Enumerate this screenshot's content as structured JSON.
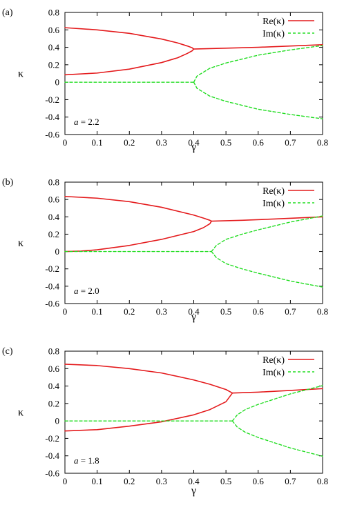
{
  "chart_data": [
    {
      "type": "line",
      "panel_label": "(a)",
      "xlabel": "γ",
      "ylabel": "κ",
      "xlim": [
        0,
        0.8
      ],
      "ylim": [
        -0.6,
        0.8
      ],
      "x_ticks": [
        "0",
        "0.1",
        "0.2",
        "0.3",
        "0.4",
        "0.5",
        "0.6",
        "0.7",
        "0.8"
      ],
      "y_ticks": [
        "-0.6",
        "-0.4",
        "-0.2",
        "0",
        "0.2",
        "0.4",
        "0.6",
        "0.8"
      ],
      "annotation": {
        "variable": "a",
        "equals": " = 2.2"
      },
      "legend_position": "top-right",
      "series": [
        {
          "name": "Re(κ)",
          "color": "#e41a1c",
          "style": "solid",
          "segments": [
            [
              [
                0,
                0.625
              ],
              [
                0.1,
                0.6
              ],
              [
                0.2,
                0.56
              ],
              [
                0.3,
                0.495
              ],
              [
                0.35,
                0.45
              ],
              [
                0.38,
                0.415
              ],
              [
                0.395,
                0.395
              ],
              [
                0.4,
                0.38
              ]
            ],
            [
              [
                0,
                0.085
              ],
              [
                0.1,
                0.105
              ],
              [
                0.2,
                0.15
              ],
              [
                0.3,
                0.225
              ],
              [
                0.35,
                0.28
              ],
              [
                0.38,
                0.33
              ],
              [
                0.395,
                0.36
              ],
              [
                0.4,
                0.38
              ]
            ],
            [
              [
                0.4,
                0.38
              ],
              [
                0.5,
                0.39
              ],
              [
                0.6,
                0.4
              ],
              [
                0.7,
                0.415
              ],
              [
                0.8,
                0.43
              ]
            ]
          ]
        },
        {
          "name": "Im(κ)",
          "color": "#22dd22",
          "style": "dashed",
          "segments": [
            [
              [
                0,
                0
              ],
              [
                0.4,
                0
              ]
            ],
            [
              [
                0.4,
                0
              ],
              [
                0.41,
                0.07
              ],
              [
                0.45,
                0.16
              ],
              [
                0.5,
                0.22
              ],
              [
                0.6,
                0.31
              ],
              [
                0.7,
                0.37
              ],
              [
                0.8,
                0.42
              ]
            ],
            [
              [
                0.4,
                0
              ],
              [
                0.41,
                -0.07
              ],
              [
                0.45,
                -0.16
              ],
              [
                0.5,
                -0.22
              ],
              [
                0.6,
                -0.31
              ],
              [
                0.7,
                -0.37
              ],
              [
                0.8,
                -0.42
              ]
            ]
          ]
        }
      ]
    },
    {
      "type": "line",
      "panel_label": "(b)",
      "xlabel": "γ",
      "ylabel": "κ",
      "xlim": [
        0,
        0.8
      ],
      "ylim": [
        -0.6,
        0.8
      ],
      "x_ticks": [
        "0",
        "0.1",
        "0.2",
        "0.3",
        "0.4",
        "0.5",
        "0.6",
        "0.7",
        "0.8"
      ],
      "y_ticks": [
        "-0.6",
        "-0.4",
        "-0.2",
        "0",
        "0.2",
        "0.4",
        "0.6",
        "0.8"
      ],
      "annotation": {
        "variable": "a",
        "equals": " = 2.0"
      },
      "legend_position": "top-right",
      "series": [
        {
          "name": "Re(κ)",
          "color": "#e41a1c",
          "style": "solid",
          "segments": [
            [
              [
                0,
                0.635
              ],
              [
                0.1,
                0.615
              ],
              [
                0.2,
                0.575
              ],
              [
                0.3,
                0.51
              ],
              [
                0.4,
                0.42
              ],
              [
                0.43,
                0.385
              ],
              [
                0.45,
                0.36
              ],
              [
                0.455,
                0.35
              ]
            ],
            [
              [
                0,
                0
              ],
              [
                0.05,
                0.005
              ],
              [
                0.1,
                0.02
              ],
              [
                0.2,
                0.07
              ],
              [
                0.3,
                0.14
              ],
              [
                0.4,
                0.23
              ],
              [
                0.43,
                0.275
              ],
              [
                0.45,
                0.32
              ],
              [
                0.455,
                0.35
              ]
            ],
            [
              [
                0.455,
                0.35
              ],
              [
                0.55,
                0.36
              ],
              [
                0.65,
                0.375
              ],
              [
                0.8,
                0.4
              ]
            ]
          ]
        },
        {
          "name": "Im(κ)",
          "color": "#22dd22",
          "style": "dashed",
          "segments": [
            [
              [
                0,
                0
              ],
              [
                0.455,
                0
              ]
            ],
            [
              [
                0.455,
                0
              ],
              [
                0.47,
                0.07
              ],
              [
                0.5,
                0.14
              ],
              [
                0.55,
                0.2
              ],
              [
                0.6,
                0.25
              ],
              [
                0.7,
                0.34
              ],
              [
                0.8,
                0.41
              ]
            ],
            [
              [
                0.455,
                0
              ],
              [
                0.47,
                -0.07
              ],
              [
                0.5,
                -0.14
              ],
              [
                0.55,
                -0.2
              ],
              [
                0.6,
                -0.25
              ],
              [
                0.7,
                -0.34
              ],
              [
                0.8,
                -0.41
              ]
            ]
          ]
        }
      ]
    },
    {
      "type": "line",
      "panel_label": "(c)",
      "xlabel": "γ",
      "ylabel": "κ",
      "xlim": [
        0,
        0.8
      ],
      "ylim": [
        -0.6,
        0.8
      ],
      "x_ticks": [
        "0",
        "0.1",
        "0.2",
        "0.3",
        "0.4",
        "0.5",
        "0.6",
        "0.7",
        "0.8"
      ],
      "y_ticks": [
        "-0.6",
        "-0.4",
        "-0.2",
        "0",
        "0.2",
        "0.4",
        "0.6",
        "0.8"
      ],
      "annotation": {
        "variable": "a",
        "equals": " = 1.8"
      },
      "legend_position": "top-right",
      "series": [
        {
          "name": "Re(κ)",
          "color": "#e41a1c",
          "style": "solid",
          "segments": [
            [
              [
                0,
                0.65
              ],
              [
                0.1,
                0.635
              ],
              [
                0.2,
                0.6
              ],
              [
                0.3,
                0.55
              ],
              [
                0.4,
                0.47
              ],
              [
                0.45,
                0.42
              ],
              [
                0.5,
                0.36
              ],
              [
                0.52,
                0.32
              ]
            ],
            [
              [
                0,
                -0.115
              ],
              [
                0.1,
                -0.1
              ],
              [
                0.2,
                -0.06
              ],
              [
                0.3,
                -0.01
              ],
              [
                0.4,
                0.07
              ],
              [
                0.45,
                0.13
              ],
              [
                0.5,
                0.22
              ],
              [
                0.52,
                0.32
              ]
            ],
            [
              [
                0.52,
                0.32
              ],
              [
                0.6,
                0.33
              ],
              [
                0.7,
                0.35
              ],
              [
                0.8,
                0.37
              ]
            ]
          ]
        },
        {
          "name": "Im(κ)",
          "color": "#22dd22",
          "style": "dashed",
          "segments": [
            [
              [
                0,
                0
              ],
              [
                0.52,
                0
              ]
            ],
            [
              [
                0.52,
                0
              ],
              [
                0.535,
                0.07
              ],
              [
                0.56,
                0.13
              ],
              [
                0.6,
                0.19
              ],
              [
                0.7,
                0.31
              ],
              [
                0.8,
                0.405
              ]
            ],
            [
              [
                0.52,
                0
              ],
              [
                0.535,
                -0.07
              ],
              [
                0.56,
                -0.13
              ],
              [
                0.6,
                -0.19
              ],
              [
                0.7,
                -0.31
              ],
              [
                0.8,
                -0.405
              ]
            ]
          ]
        }
      ]
    }
  ]
}
